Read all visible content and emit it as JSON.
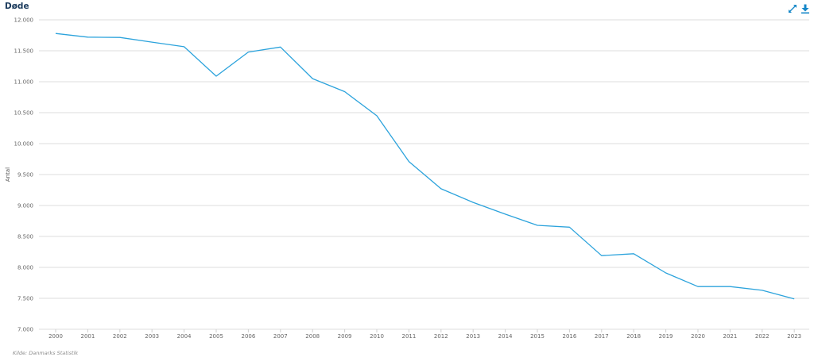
{
  "header": {
    "title": "Døde"
  },
  "toolbar": {
    "expand_icon": "expand-icon",
    "download_icon": "download-icon"
  },
  "footer": {
    "source": "Kilde: Danmarks Statistik"
  },
  "colors": {
    "line": "#2ca3dc",
    "icon": "#1587c8",
    "grid": "#dedede",
    "title": "#1a3a5c"
  },
  "chart_data": {
    "type": "line",
    "title": "Døde",
    "xlabel": "",
    "ylabel": "Antal",
    "categories": [
      "2000",
      "2001",
      "2002",
      "2003",
      "2004",
      "2005",
      "2006",
      "2007",
      "2008",
      "2009",
      "2010",
      "2011",
      "2012",
      "2013",
      "2014",
      "2015",
      "2016",
      "2017",
      "2018",
      "2019",
      "2020",
      "2021",
      "2022",
      "2023"
    ],
    "series": [
      {
        "name": "Døde",
        "values": [
          11780,
          11720,
          11715,
          11640,
          11565,
          11090,
          11480,
          11560,
          11050,
          10840,
          10450,
          9710,
          9270,
          9050,
          8860,
          8680,
          8650,
          8190,
          8220,
          7910,
          7690,
          7690,
          7630,
          7490
        ]
      }
    ],
    "ylim": [
      7000,
      12000
    ],
    "yticks": [
      7000,
      7500,
      8000,
      8500,
      9000,
      9500,
      10000,
      10500,
      11000,
      11500,
      12000
    ],
    "ytick_labels": [
      "7.000",
      "7.500",
      "8.000",
      "8.500",
      "9.000",
      "9.500",
      "10.000",
      "10.500",
      "11.000",
      "11.500",
      "12.000"
    ],
    "grid": true,
    "legend": "none"
  }
}
